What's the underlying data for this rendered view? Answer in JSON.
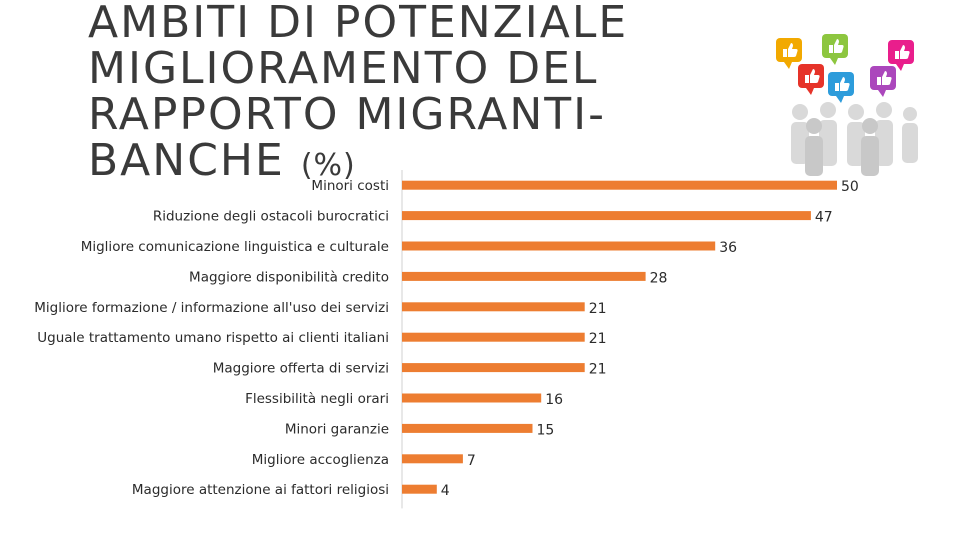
{
  "title": {
    "text": "AMBITI DI POTENZIALE MIGLIORAMENTO DEL RAPPORTO MIGRANTI-BANCHE",
    "unit": "(%)"
  },
  "chart_data": {
    "type": "bar",
    "orientation": "horizontal",
    "title": "AMBITI DI POTENZIALE MIGLIORAMENTO DEL RAPPORTO MIGRANTI-BANCHE (%)",
    "categories": [
      "Minori costi",
      "Riduzione degli ostacoli burocratici",
      "Migliore comunicazione linguistica e culturale",
      "Maggiore disponibilità credito",
      "Migliore formazione / informazione all'uso dei servizi",
      "Uguale trattamento umano rispetto ai clienti italiani",
      "Maggiore offerta di servizi",
      "Flessibilità negli orari",
      "Minori garanzie",
      "Migliore accoglienza",
      "Maggiore attenzione ai fattori religiosi"
    ],
    "values": [
      50,
      47,
      36,
      28,
      21,
      21,
      21,
      16,
      15,
      7,
      4
    ],
    "xlim": [
      0,
      55
    ],
    "bar_color": "#ed7d31"
  },
  "illustration": {
    "icon": "thumbs-up-people-icon",
    "colors": [
      "#f2a900",
      "#8dc63f",
      "#e91e8c",
      "#e63329",
      "#2d9cdb",
      "#ab47bc"
    ]
  }
}
